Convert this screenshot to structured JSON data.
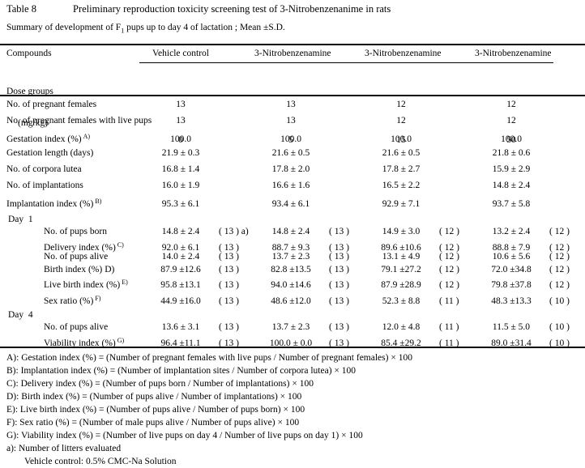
{
  "title": {
    "label": "Table 8",
    "text": "Preliminary reproduction toxicity screening test of 3-Nitrobenzenanime in rats"
  },
  "subtitle": {
    "prefix": "Summary of development of F",
    "sub": "1",
    "suffix": " pups up to day 4 of lactation ; Mean ±S.D."
  },
  "table": {
    "compounds_header": "Compounds",
    "compound_columns": [
      "Vehicle control",
      "3-Nitrobenzenamine",
      "3-Nitrobenzenamine",
      "3-Nitrobenzenamine"
    ],
    "dose_label_line1": "Dose groups",
    "dose_label_line2": "(mg/kg)",
    "doses": [
      "0",
      "5",
      "15",
      "50"
    ],
    "rows": [
      {
        "label": "No. of pregnant females",
        "values": [
          "13",
          "13",
          "12",
          "12"
        ],
        "counts": [
          "",
          "",
          "",
          ""
        ]
      },
      {
        "label": "No. of pregnant females with live pups",
        "values": [
          "13",
          "13",
          "12",
          "12"
        ],
        "counts": [
          "",
          "",
          "",
          ""
        ]
      },
      {
        "label": "Gestation index (%)",
        "marker": "A)",
        "marker_super": true,
        "values": [
          "100.0",
          "100.0",
          "100.0",
          "100.0"
        ],
        "counts": [
          "",
          "",
          "",
          ""
        ]
      },
      {
        "label": "Gestation length (days)",
        "values": [
          "21.9 ± 0.3",
          "21.6 ± 0.5",
          "21.6 ± 0.5",
          "21.8 ± 0.6"
        ],
        "counts": [
          "",
          "",
          "",
          ""
        ]
      },
      {
        "label": "No. of corpora lutea",
        "values": [
          "16.8 ± 1.4",
          "17.8 ± 2.0",
          "17.8 ± 2.7",
          "15.9 ± 2.9"
        ],
        "counts": [
          "",
          "",
          "",
          ""
        ]
      },
      {
        "label": "No. of implantations",
        "values": [
          "16.0 ± 1.9",
          "16.6 ± 1.6",
          "16.5 ± 2.2",
          "14.8 ± 2.4"
        ],
        "counts": [
          "",
          "",
          "",
          ""
        ]
      },
      {
        "label": "Implantation index (%)",
        "marker": "B)",
        "marker_super": true,
        "values": [
          "95.3 ± 6.1",
          "93.4 ± 6.1",
          "92.9 ± 7.1",
          "93.7 ± 5.8"
        ],
        "counts": [
          "",
          "",
          "",
          ""
        ]
      },
      {
        "section": "Day  1"
      },
      {
        "label": "No. of pups born",
        "indent": true,
        "values": [
          "14.8 ± 2.4",
          "14.8 ± 2.4",
          "14.9 ± 3.0",
          "13.2 ± 2.4"
        ],
        "counts": [
          "( 13 ) a)",
          "( 13 )",
          "( 12 )",
          "( 12 )"
        ]
      },
      {
        "label": "Delivery index (%)",
        "marker": "C)",
        "marker_super": true,
        "indent": true,
        "values": [
          "92.0 ± 6.1",
          "88.7 ± 9.3",
          "89.6 ±10.6",
          "88.8 ± 7.9"
        ],
        "counts": [
          "( 13 )",
          "( 13 )",
          "( 12 )",
          "( 12 )"
        ]
      },
      {
        "label": "No. of pups alive",
        "indent": true,
        "values": [
          "14.0 ± 2.4",
          "13.7 ± 2.3",
          "13.1 ± 4.9",
          "10.6 ± 5.6"
        ],
        "counts": [
          "( 13 )",
          "( 13 )",
          "( 12 )",
          "( 12 )"
        ]
      },
      {
        "label": "Birth index (%)",
        "marker": "D)",
        "marker_super": false,
        "indent": true,
        "values": [
          "87.9 ±12.6",
          "82.8 ±13.5",
          "79.1 ±27.2",
          "72.0 ±34.8"
        ],
        "counts": [
          "( 13 )",
          "( 13 )",
          "( 12 )",
          "( 12 )"
        ]
      },
      {
        "label": "Live birth index (%)",
        "marker": "E)",
        "marker_super": true,
        "indent": true,
        "values": [
          "95.8 ±13.1",
          "94.0 ±14.6",
          "87.9 ±28.9",
          "79.8 ±37.8"
        ],
        "counts": [
          "( 13 )",
          "( 13 )",
          "( 12 )",
          "( 12 )"
        ]
      },
      {
        "label": "Sex ratio (%)",
        "marker": "F)",
        "marker_super": true,
        "indent": true,
        "gap": true,
        "values": [
          "44.9 ±16.0",
          "48.6 ±12.0",
          "52.3 ± 8.8",
          "48.3 ±13.3"
        ],
        "counts": [
          "( 13 )",
          "( 13 )",
          "( 11 )",
          "( 10 )"
        ]
      },
      {
        "section": "Day  4"
      },
      {
        "label": "No. of pups alive",
        "indent": true,
        "values": [
          "13.6 ± 3.1",
          "13.7 ± 2.3",
          "12.0 ± 4.8",
          "11.5 ± 5.0"
        ],
        "counts": [
          "( 13 )",
          "( 13 )",
          "( 11 )",
          "( 10 )"
        ]
      },
      {
        "label": "Viability index (%)",
        "marker": "G)",
        "marker_super": true,
        "indent": true,
        "values": [
          "96.4 ±11.1",
          "100.0 ± 0.0",
          "85.4 ±29.2",
          "89.0 ±31.4"
        ],
        "counts": [
          "( 13 )",
          "( 13 )",
          "( 11 )",
          "( 10 )"
        ]
      }
    ]
  },
  "footnotes": [
    {
      "text": "A): Gestation index (%) = (Number of pregnant females with live pups / Number of pregnant females) × 100",
      "indent": false
    },
    {
      "text": "B): Implantation index (%) = (Number of implantation sites / Number of corpora lutea) × 100",
      "indent": false
    },
    {
      "text": "C): Delivery index (%) = (Number of pups born / Number of implantations) × 100",
      "indent": false
    },
    {
      "text": "D): Birth index (%) = (Number of pups alive / Number of implantations) × 100",
      "indent": false
    },
    {
      "text": "E): Live birth index (%) = (Number of pups alive / Number of pups born) × 100",
      "indent": false
    },
    {
      "text": "F): Sex ratio (%) = (Number of male pups alive / Number of pups alive) × 100",
      "indent": false
    },
    {
      "text": "G): Viability index (%) = (Number of live pups on day 4 / Number of live pups on day 1) × 100",
      "indent": false
    },
    {
      "text": "a): Number of litters evaluated",
      "indent": false
    },
    {
      "text": "Vehicle control: 0.5% CMC-Na Solution",
      "indent": true
    }
  ]
}
